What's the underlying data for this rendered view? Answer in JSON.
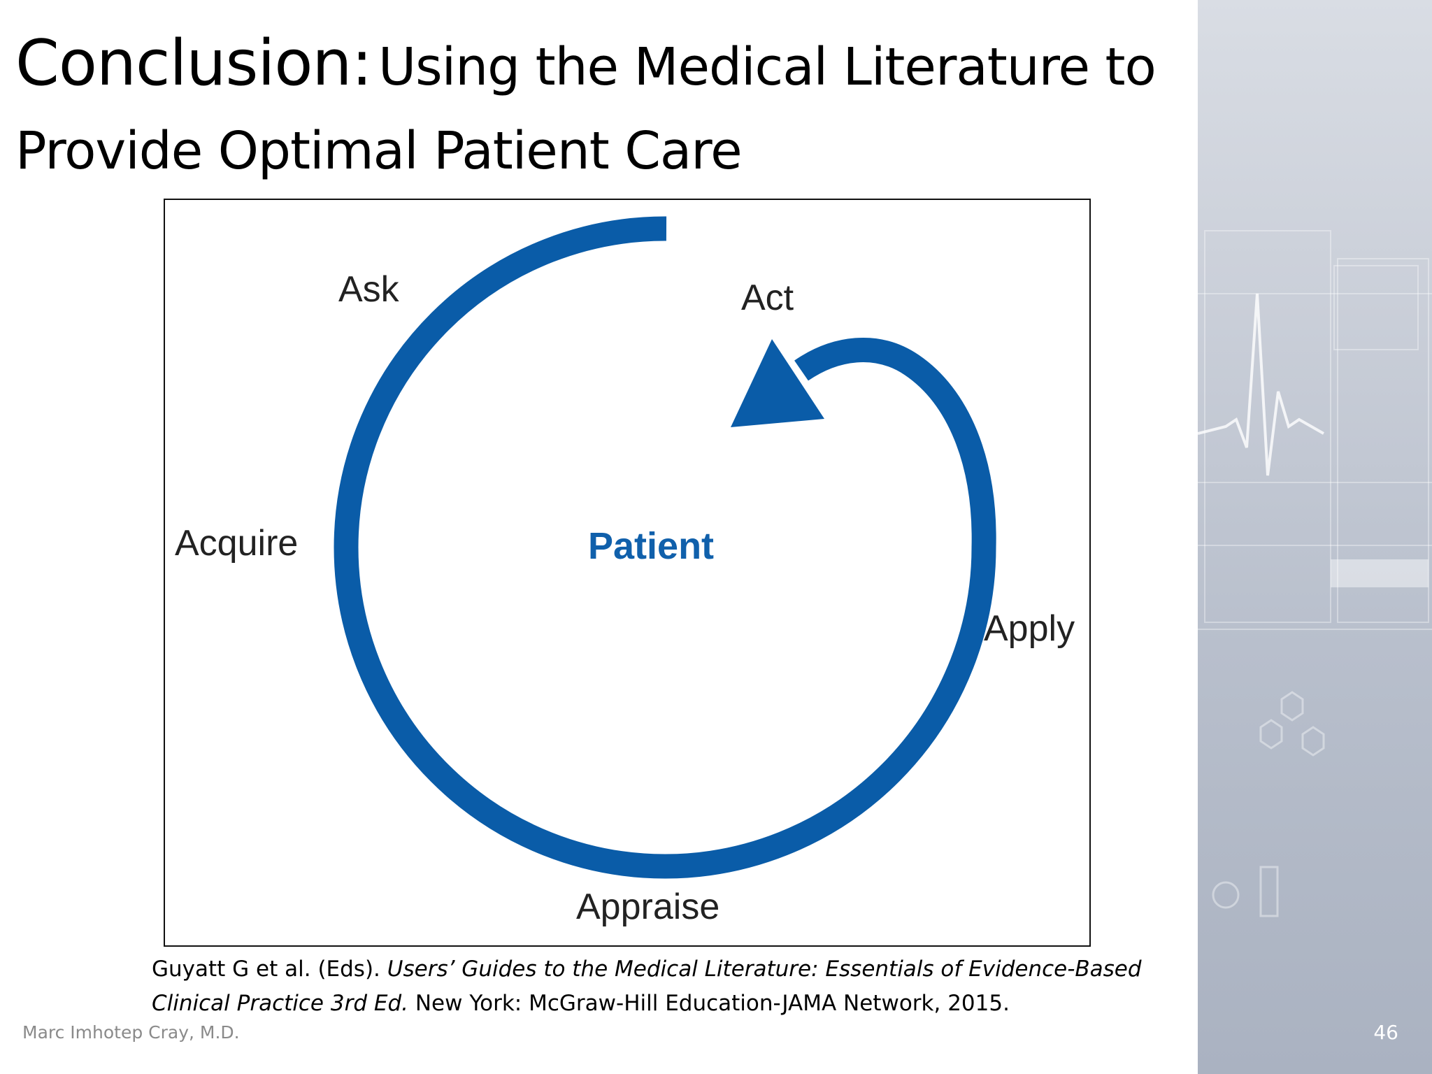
{
  "title": {
    "main": "Conclusion:",
    "subtitle_line1": "Using the Medical Literature to",
    "subtitle_line2": "Provide Optimal Patient Care"
  },
  "diagram": {
    "center": "Patient",
    "stages": {
      "ask": "Ask",
      "acquire": "Acquire",
      "appraise": "Appraise",
      "apply": "Apply",
      "act": "Act"
    },
    "colors": {
      "cycle": "#0a5ca8",
      "center_text": "#1060ab"
    }
  },
  "citation": {
    "authors": "Guyatt G et al. (Eds).",
    "book_title": "Users’ Guides to the Medical Literature: Essentials of Evidence-Based Clinical Practice 3rd Ed.",
    "publisher": "New York: McGraw-Hill Education-JAMA Network, 2015."
  },
  "footer": {
    "author": "Marc Imhotep Cray, M.D.",
    "page_number": "46"
  }
}
